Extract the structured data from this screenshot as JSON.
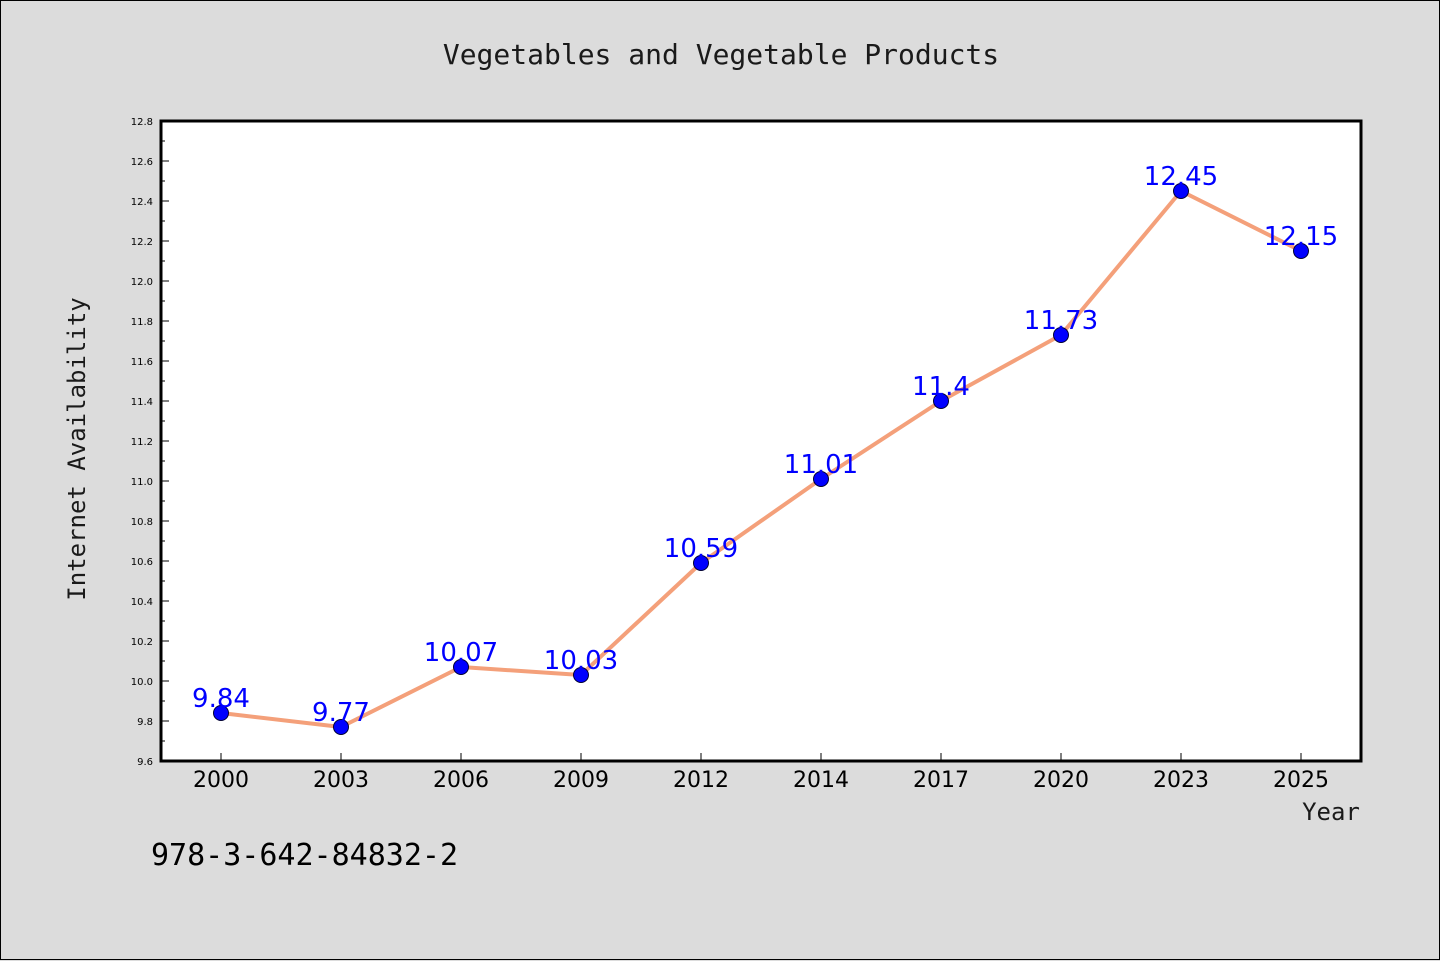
{
  "chart_data": {
    "type": "line",
    "title": "Vegetables and Vegetable Products",
    "xlabel": "Year",
    "ylabel": "Internet Availability",
    "categories": [
      "2000",
      "2003",
      "2006",
      "2009",
      "2012",
      "2014",
      "2017",
      "2020",
      "2023",
      "2025"
    ],
    "series": [
      {
        "values": [
          9.84,
          9.77,
          10.07,
          10.03,
          10.59,
          11.01,
          11.4,
          11.73,
          12.45,
          12.15
        ]
      }
    ],
    "data_labels": [
      "9.84",
      "9.77",
      "10.07",
      "10.03",
      "10.59",
      "11.01",
      "11.4",
      "11.73",
      "12.45",
      "12.15"
    ],
    "ylim": [
      9.6,
      12.8
    ],
    "yticks": [
      "9.6",
      "9.8",
      "10.0",
      "10.2",
      "10.4",
      "10.6",
      "10.8",
      "11.0",
      "11.2",
      "11.4",
      "11.6",
      "11.8",
      "12.0",
      "12.2",
      "12.4",
      "12.6",
      "12.8"
    ],
    "grid": false,
    "colors": {
      "line": "#f4a07a",
      "marker": "#0000ff",
      "data_label": "#0000ff",
      "plot_bg": "#ffffff",
      "figure_bg": "#dcdcdc"
    }
  },
  "footer_text": "978-3-642-84832-2"
}
